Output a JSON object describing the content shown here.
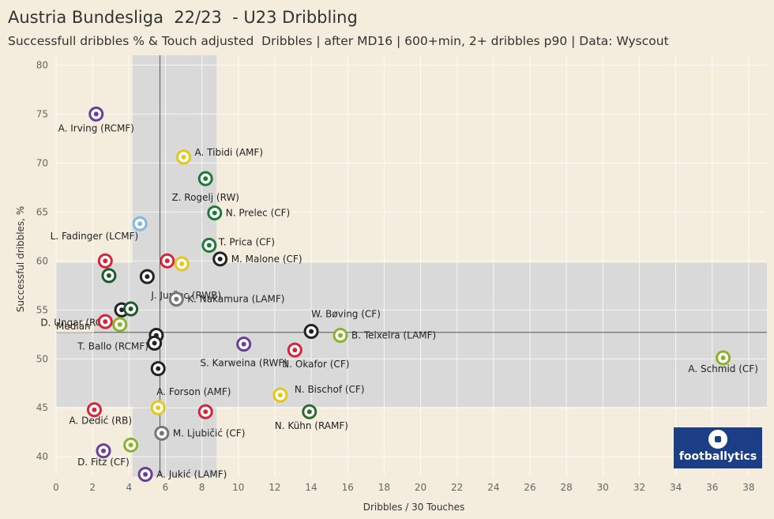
{
  "header": {
    "title": "Austria Bundesliga  22/23  - U23 Dribbling",
    "subtitle": "Successfull dribbles % & Touch adjusted  Dribbles | after MD16 | 600+min, 2+ dribbles p90 | Data: Wyscout"
  },
  "logo": {
    "text": "footballytics"
  },
  "chart_data": {
    "type": "scatter",
    "title": "Austria Bundesliga  22/23  - U23 Dribbling",
    "subtitle": "Successfull dribbles % & Touch adjusted  Dribbles | after MD16 | 600+min, 2+ dribbles p90 | Data: Wyscout",
    "xlabel": "Dribbles / 30 Touches",
    "ylabel": "Successful dribbles, %",
    "xlim": [
      0,
      39
    ],
    "ylim": [
      38,
      81
    ],
    "xticks": [
      0,
      2,
      4,
      6,
      8,
      10,
      12,
      14,
      16,
      18,
      20,
      22,
      24,
      26,
      28,
      30,
      32,
      34,
      36,
      38
    ],
    "yticks": [
      40,
      45,
      50,
      55,
      60,
      65,
      70,
      75,
      80
    ],
    "median_x": 5.7,
    "median_y": 52.7,
    "median_label": "Median",
    "shaded_x_band": [
      4.2,
      8.8
    ],
    "shaded_y_band": [
      45.1,
      59.8
    ],
    "grid": true,
    "points": [
      {
        "label": "A. Irving (RCMF)",
        "x": 2.2,
        "y": 75.0,
        "color": "#6a3d9a"
      },
      {
        "label": "A. Tibidi (AMF)",
        "x": 7.0,
        "y": 70.6,
        "color": "#e6c619"
      },
      {
        "label": "Z. Rogelj (RW)",
        "x": 8.2,
        "y": 68.4,
        "color": "#1f7a3a"
      },
      {
        "label": "N. Prelec (CF)",
        "x": 8.7,
        "y": 64.9,
        "color": "#1f7a3a"
      },
      {
        "label": "L. Fadinger (LCMF)",
        "x": 4.6,
        "y": 63.8,
        "color": "#7fb8e0"
      },
      {
        "label": "T. Prica (CF)",
        "x": 8.4,
        "y": 61.6,
        "color": "#1f7a3a"
      },
      {
        "label": "",
        "x": 2.7,
        "y": 60.0,
        "color": "#d6243b"
      },
      {
        "label": "",
        "x": 6.1,
        "y": 60.0,
        "color": "#d6243b"
      },
      {
        "label": "",
        "x": 6.9,
        "y": 59.7,
        "color": "#e6c619"
      },
      {
        "label": "M. Malone (CF)",
        "x": 9.0,
        "y": 60.2,
        "color": "#222222"
      },
      {
        "label": "",
        "x": 2.9,
        "y": 58.5,
        "color": "#1f5a2e"
      },
      {
        "label": "J. Jurčec (RWB)",
        "x": 5.0,
        "y": 58.4,
        "color": "#222222"
      },
      {
        "label": "K. Nakamura (LAMF)",
        "x": 6.6,
        "y": 56.1,
        "color": "#777777"
      },
      {
        "label": "D.  Ungar (RCB)",
        "x": 3.6,
        "y": 55.0,
        "color": "#222222"
      },
      {
        "label": "",
        "x": 4.1,
        "y": 55.1,
        "color": "#1f5a2e"
      },
      {
        "label": "",
        "x": 2.7,
        "y": 53.8,
        "color": "#d6243b"
      },
      {
        "label": "",
        "x": 3.5,
        "y": 53.5,
        "color": "#8ab32a"
      },
      {
        "label": "W. Bøving (CF)",
        "x": 14.0,
        "y": 52.8,
        "color": "#222222"
      },
      {
        "label": "B. Teixeira (LAMF)",
        "x": 15.6,
        "y": 52.4,
        "color": "#8ab32a"
      },
      {
        "label": "T. Ballo (RCMF)",
        "x": 5.5,
        "y": 52.4,
        "color": "#222222"
      },
      {
        "label": "",
        "x": 5.4,
        "y": 51.6,
        "color": "#222222"
      },
      {
        "label": "S. Karweina (RWF)",
        "x": 10.3,
        "y": 51.5,
        "color": "#6a3d9a"
      },
      {
        "label": "N. Okafor (CF)",
        "x": 13.1,
        "y": 50.9,
        "color": "#d6243b"
      },
      {
        "label": "A. Schmid (CF)",
        "x": 36.6,
        "y": 50.1,
        "color": "#8ab32a"
      },
      {
        "label": "",
        "x": 5.6,
        "y": 49.0,
        "color": "#222222"
      },
      {
        "label": "N. Bischof (CF)",
        "x": 12.3,
        "y": 46.3,
        "color": "#e6c619"
      },
      {
        "label": "A. Forson (AMF)",
        "x": 5.6,
        "y": 45.0,
        "color": "#e6c619"
      },
      {
        "label": "A. Dedić (RB)",
        "x": 2.1,
        "y": 44.8,
        "color": "#d6243b"
      },
      {
        "label": "",
        "x": 8.2,
        "y": 44.6,
        "color": "#d6243b"
      },
      {
        "label": "N. Kühn (RAMF)",
        "x": 13.9,
        "y": 44.6,
        "color": "#2e6b2e"
      },
      {
        "label": "M. Ljubičić (CF)",
        "x": 5.8,
        "y": 42.4,
        "color": "#777777"
      },
      {
        "label": "",
        "x": 4.1,
        "y": 41.2,
        "color": "#8ab32a"
      },
      {
        "label": "D. Fitz (CF)",
        "x": 2.6,
        "y": 40.6,
        "color": "#6a3d9a"
      },
      {
        "label": "A. Jukić (LAMF)",
        "x": 4.9,
        "y": 38.2,
        "color": "#6a3d9a"
      }
    ]
  }
}
